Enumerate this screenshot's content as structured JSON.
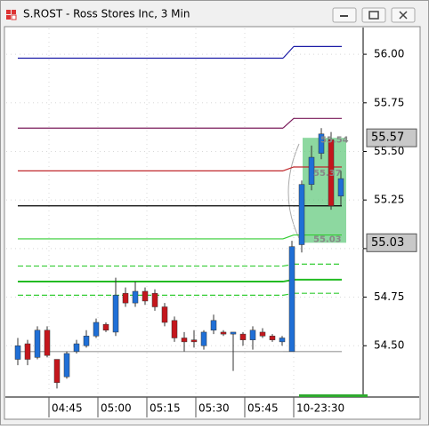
{
  "chart_data": {
    "type": "candlestick",
    "title": "S.ROST - Ross Stores Inc, 3 Min",
    "categories": [
      null,
      null,
      null,
      "04:45",
      null,
      null,
      null,
      null,
      "05:00",
      null,
      null,
      null,
      null,
      "05:15",
      null,
      null,
      null,
      null,
      "05:30",
      null,
      null,
      null,
      null,
      "05:45",
      null,
      null,
      null,
      null,
      "10-23:30",
      null,
      null,
      null,
      null,
      null
    ],
    "open": [
      54.43,
      54.51,
      54.44,
      54.58,
      54.43,
      54.34,
      54.47,
      54.5,
      54.55,
      54.61,
      54.57,
      54.77,
      54.72,
      54.78,
      54.77,
      54.7,
      54.63,
      54.54,
      54.53,
      54.5,
      54.58,
      54.57,
      54.56,
      54.56,
      54.53,
      54.57,
      54.55,
      54.52,
      54.47,
      55.02,
      55.33,
      55.49,
      55.56,
      55.27
    ],
    "high": [
      54.54,
      54.53,
      54.6,
      54.6,
      54.43,
      54.47,
      54.53,
      54.58,
      54.64,
      54.62,
      54.85,
      54.8,
      54.83,
      54.8,
      54.79,
      54.72,
      54.65,
      54.57,
      54.58,
      54.58,
      54.66,
      54.58,
      54.57,
      54.57,
      54.6,
      54.59,
      54.56,
      54.55,
      55.04,
      55.35,
      55.53,
      55.62,
      55.6,
      55.4
    ],
    "low": [
      54.4,
      54.4,
      54.43,
      54.44,
      54.28,
      54.33,
      54.46,
      54.49,
      54.54,
      54.57,
      54.55,
      54.7,
      54.7,
      54.71,
      54.68,
      54.6,
      54.52,
      54.47,
      54.49,
      54.48,
      54.56,
      54.55,
      54.37,
      54.5,
      54.48,
      54.54,
      54.52,
      54.5,
      54.47,
      54.98,
      55.3,
      55.46,
      55.2,
      55.22
    ],
    "close": [
      54.5,
      54.43,
      54.58,
      54.45,
      54.31,
      54.46,
      54.51,
      54.55,
      54.62,
      54.58,
      54.76,
      54.72,
      54.78,
      54.73,
      54.7,
      54.62,
      54.54,
      54.52,
      54.52,
      54.57,
      54.63,
      54.56,
      54.57,
      54.53,
      54.58,
      54.55,
      54.53,
      54.54,
      55.01,
      55.33,
      55.47,
      55.59,
      55.22,
      55.36
    ],
    "up_color": "#1f6fd6",
    "down_color": "#c4161c",
    "levels": [
      {
        "color": "#1a1aa6",
        "values": [
          55.98,
          56.04
        ],
        "dashed": false
      },
      {
        "color": "#7a1a5a",
        "values": [
          55.62,
          55.67
        ],
        "dashed": false
      },
      {
        "color": "#c0282c",
        "values": [
          55.4,
          55.42
        ],
        "dashed": false
      },
      {
        "color": "#000000",
        "values": [
          55.22,
          55.22
        ],
        "dashed": false
      },
      {
        "color": "#33cc33",
        "values": [
          55.05,
          55.07
        ],
        "dashed": false
      },
      {
        "color": "#33cc33",
        "values": [
          54.91,
          54.92
        ],
        "dashed": true
      },
      {
        "color": "#22bb22",
        "values": [
          54.83,
          54.84
        ],
        "dashed": false
      },
      {
        "color": "#33cc33",
        "values": [
          54.76,
          54.77
        ],
        "dashed": true
      },
      {
        "color": "#999999",
        "values": [
          54.47,
          54.47
        ],
        "dashed": false
      }
    ],
    "price_boxes": [
      55.57,
      55.03
    ],
    "markers": [
      55.54,
      55.37,
      55.03
    ],
    "ylim": [
      54.236,
      56.133
    ],
    "yticks": [
      {
        "value": 56,
        "label": "56.00"
      },
      55.75,
      {
        "value": 55.5,
        "label": "55.50"
      },
      55.25,
      {
        "value": 55,
        "label": "55.00"
      },
      54.75,
      {
        "value": 54.5,
        "label": "54.50"
      }
    ],
    "grid": true
  }
}
